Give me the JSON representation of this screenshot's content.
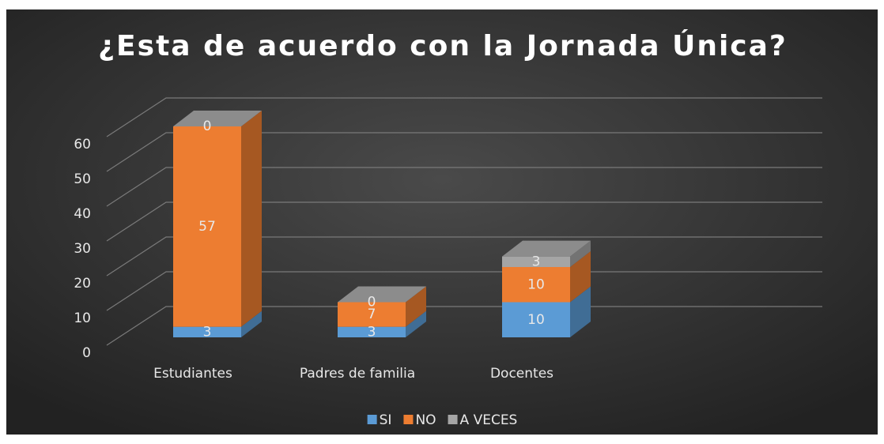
{
  "chart_data": {
    "type": "bar3d_stacked",
    "title": "¿Esta de acuerdo con la Jornada Única?",
    "categories": [
      "Estudiantes",
      "Padres  de familia",
      "Docentes",
      null
    ],
    "series": [
      {
        "name": "SI",
        "color": "#5b9bd5",
        "values": [
          3,
          3,
          10,
          null
        ]
      },
      {
        "name": "NO",
        "color": "#ed7d31",
        "values": [
          57,
          7,
          10,
          null
        ]
      },
      {
        "name": "A VECES",
        "color": "#a5a5a5",
        "values": [
          0,
          0,
          3,
          null
        ]
      }
    ],
    "ylim": [
      0,
      60
    ],
    "yticks": [
      0,
      10,
      20,
      30,
      40,
      50,
      60
    ],
    "grid": true,
    "legend": "bottom"
  }
}
